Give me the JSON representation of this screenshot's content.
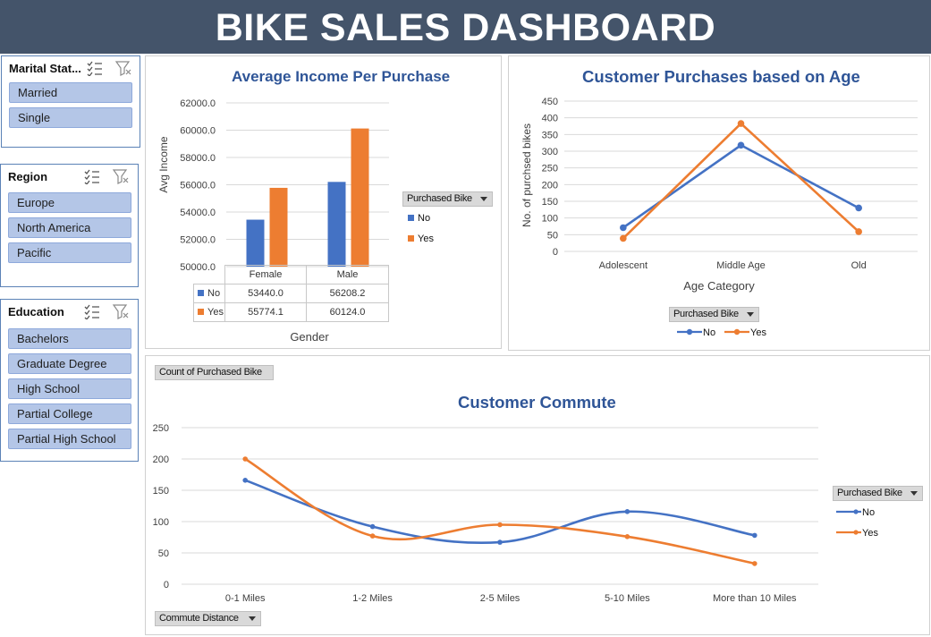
{
  "dashboard": {
    "title": "BIKE SALES DASHBOARD"
  },
  "slicers": [
    {
      "title": "Marital Stat...",
      "items": [
        "Married",
        "Single"
      ]
    },
    {
      "title": "Region",
      "items": [
        "Europe",
        "North America",
        "Pacific"
      ]
    },
    {
      "title": "Education",
      "items": [
        "Bachelors",
        "Graduate Degree",
        "High School",
        "Partial College",
        "Partial High School"
      ]
    }
  ],
  "icons": {
    "multi_select": "multi-select-icon",
    "clear_filter": "clear-filter-icon",
    "dropdown": "dropdown-arrow-icon"
  },
  "colors": {
    "banner": "#44546a",
    "title_blue": "#2f5597",
    "series_no": "#4472c4",
    "series_yes": "#ed7d31",
    "slicer_item": "#b4c6e7",
    "field_button": "#d9d9d9"
  },
  "income_chart": {
    "title": "Average Income Per Purchase",
    "legend_button": "Purchased Bike",
    "legend": [
      "No",
      "Yes"
    ],
    "table_header": [
      "Female",
      "Male"
    ],
    "table_rows": [
      {
        "key": "No",
        "values": [
          "53440.0",
          "56208.2"
        ]
      },
      {
        "key": "Yes",
        "values": [
          "55774.1",
          "60124.0"
        ]
      }
    ]
  },
  "age_chart": {
    "title": "Customer Purchases based on Age",
    "legend_button": "Purchased Bike",
    "legend": [
      "No",
      "Yes"
    ]
  },
  "commute_chart": {
    "title": "Customer Commute",
    "value_button": "Count of Purchased Bike",
    "axis_button": "Commute Distance",
    "legend_button": "Purchased Bike",
    "legend": [
      "No",
      "Yes"
    ]
  },
  "chart_data": [
    {
      "type": "bar",
      "title": "Average Income Per Purchase",
      "xlabel": "Gender",
      "ylabel": "Avg Income",
      "categories": [
        "Female",
        "Male"
      ],
      "series": [
        {
          "name": "No",
          "values": [
            53440.0,
            56208.2
          ]
        },
        {
          "name": "Yes",
          "values": [
            55774.1,
            60124.0
          ]
        }
      ],
      "ylim": [
        50000,
        62000
      ],
      "yticks": [
        "62000.0",
        "60000.0",
        "58000.0",
        "56000.0",
        "54000.0",
        "52000.0",
        "50000.0"
      ],
      "grid": true,
      "legend": "right"
    },
    {
      "type": "line",
      "title": "Customer Purchases based on Age",
      "xlabel": "Age Category",
      "ylabel": "No. of purchsed bikes",
      "categories": [
        "Adolescent",
        "Middle Age",
        "Old"
      ],
      "series": [
        {
          "name": "No",
          "values": [
            71,
            318,
            130
          ]
        },
        {
          "name": "Yes",
          "values": [
            39,
            383,
            59
          ]
        }
      ],
      "ylim": [
        0,
        450
      ],
      "yticks": [
        "450",
        "400",
        "350",
        "300",
        "250",
        "200",
        "150",
        "100",
        "50",
        "0"
      ],
      "grid": true,
      "legend": "bottom"
    },
    {
      "type": "line",
      "title": "Customer Commute",
      "xlabel": "",
      "ylabel": "",
      "categories": [
        "0-1 Miles",
        "1-2 Miles",
        "2-5 Miles",
        "5-10 Miles",
        "More than 10 Miles"
      ],
      "series": [
        {
          "name": "No",
          "values": [
            166,
            92,
            67,
            116,
            78
          ]
        },
        {
          "name": "Yes",
          "values": [
            200,
            77,
            95,
            76,
            33
          ]
        }
      ],
      "ylim": [
        0,
        250
      ],
      "yticks": [
        "250",
        "200",
        "150",
        "100",
        "50",
        "0"
      ],
      "grid": true,
      "smooth": true,
      "legend": "right"
    }
  ]
}
